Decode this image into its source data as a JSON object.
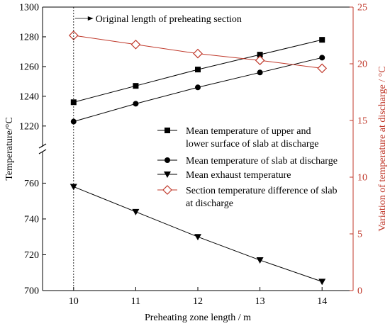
{
  "chart_data": {
    "type": "line",
    "x_label": "Preheating zone length / m",
    "y_left_label": "Temperature/°C",
    "y_right_label": "Variation of temperature at discharge / °C",
    "x_ticks": [
      "10",
      "11",
      "12",
      "13",
      "14"
    ],
    "y_left_upper_ticks": [
      "1220",
      "1240",
      "1260",
      "1280",
      "1300"
    ],
    "y_left_lower_ticks": [
      "700",
      "720",
      "740",
      "760"
    ],
    "y_right_ticks": [
      "0",
      "5",
      "10",
      "15",
      "20",
      "25"
    ],
    "x_range": [
      9.5,
      14.5
    ],
    "y_left_upper_range": [
      1208,
      1300
    ],
    "y_left_lower_range": [
      700,
      776
    ],
    "y_right_range": [
      0,
      25
    ],
    "axis_break": "left axis broken between 776 and 1208",
    "annotation": "Original length of preheating section",
    "annotation_x": 10,
    "colors": {
      "black": "#000000",
      "red": "#c0392b"
    },
    "x": [
      10,
      11,
      12,
      13,
      14
    ],
    "series": [
      {
        "name": "Mean temperature of  upper and lower surface of slab at discharge",
        "legend_lines": [
          "Mean temperature of  upper and",
          "lower surface of slab at discharge"
        ],
        "axis": "left",
        "marker": "square",
        "color": "#000000",
        "values": [
          1236,
          1247,
          1258,
          1268,
          1278
        ]
      },
      {
        "name": "Mean temperature of slab at discharge",
        "legend_lines": [
          "Mean temperature of slab at discharge"
        ],
        "axis": "left",
        "marker": "circle",
        "color": "#000000",
        "values": [
          1223,
          1235,
          1246,
          1256,
          1266
        ]
      },
      {
        "name": "Mean exhaust temperature",
        "legend_lines": [
          "Mean exhaust temperature"
        ],
        "axis": "left",
        "marker": "triangle-down",
        "color": "#000000",
        "values": [
          758,
          744,
          730,
          717,
          705
        ]
      },
      {
        "name": "Section temperature difference of slab at discharge",
        "legend_lines": [
          "Section temperature difference of slab",
          "at discharge"
        ],
        "axis": "right",
        "marker": "diamond-open",
        "color": "#c0392b",
        "values": [
          22.5,
          21.7,
          20.9,
          20.3,
          19.6
        ]
      }
    ]
  }
}
